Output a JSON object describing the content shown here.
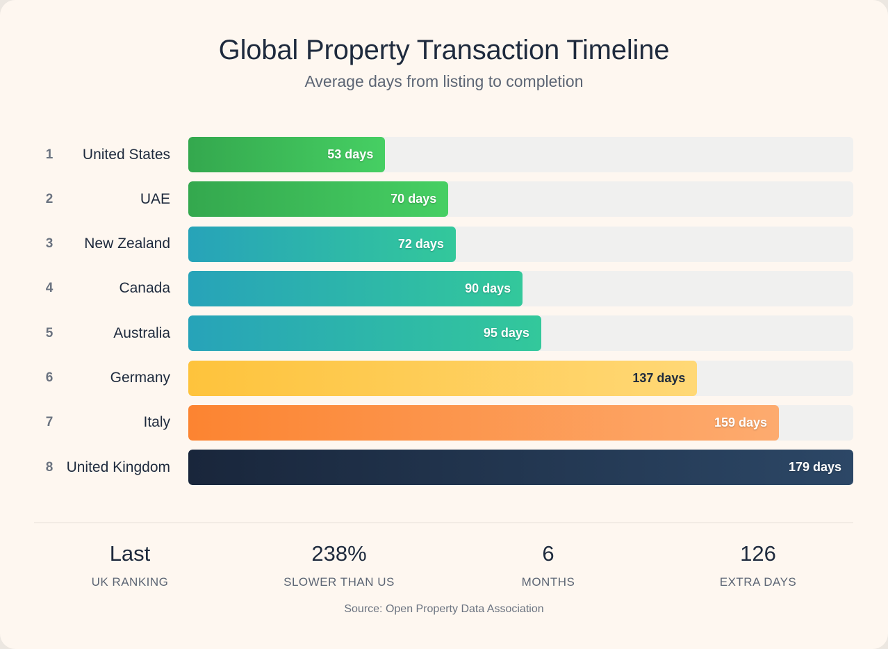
{
  "header": {
    "title": "Global Property Transaction Timeline",
    "subtitle": "Average days from listing to completion"
  },
  "chart_data": {
    "type": "bar",
    "orientation": "horizontal",
    "title": "Global Property Transaction Timeline",
    "subtitle": "Average days from listing to completion",
    "xlim": [
      0,
      179
    ],
    "grid": false,
    "categories": [
      "United States",
      "UAE",
      "New Zealand",
      "Canada",
      "Australia",
      "Germany",
      "Italy",
      "United Kingdom"
    ],
    "ranks": [
      "1",
      "2",
      "3",
      "4",
      "5",
      "6",
      "7",
      "8"
    ],
    "values": [
      53,
      70,
      72,
      90,
      95,
      137,
      159,
      179
    ],
    "value_labels": [
      "53 days",
      "70 days",
      "72 days",
      "90 days",
      "95 days",
      "137 days",
      "159 days",
      "179 days"
    ],
    "colors": [
      [
        "#34a84e",
        "#46cf63"
      ],
      [
        "#34a84e",
        "#46cf63"
      ],
      [
        "#27a3b9",
        "#33c89b"
      ],
      [
        "#27a3b9",
        "#33c89b"
      ],
      [
        "#27a3b9",
        "#33c89b"
      ],
      [
        "#fec33c",
        "#ffd876"
      ],
      [
        "#fc8431",
        "#fdab6f"
      ],
      [
        "#19263b",
        "#2c4766"
      ]
    ],
    "label_colors": [
      "#ffffff",
      "#ffffff",
      "#ffffff",
      "#ffffff",
      "#ffffff",
      "#1e2a3d",
      "#ffffff",
      "#ffffff"
    ]
  },
  "stats": [
    {
      "value": "Last",
      "label": "UK RANKING"
    },
    {
      "value": "238%",
      "label": "SLOWER THAN US"
    },
    {
      "value": "6",
      "label": "MONTHS"
    },
    {
      "value": "126",
      "label": "EXTRA DAYS"
    }
  ],
  "footer": {
    "source": "Source: Open Property Data Association"
  }
}
